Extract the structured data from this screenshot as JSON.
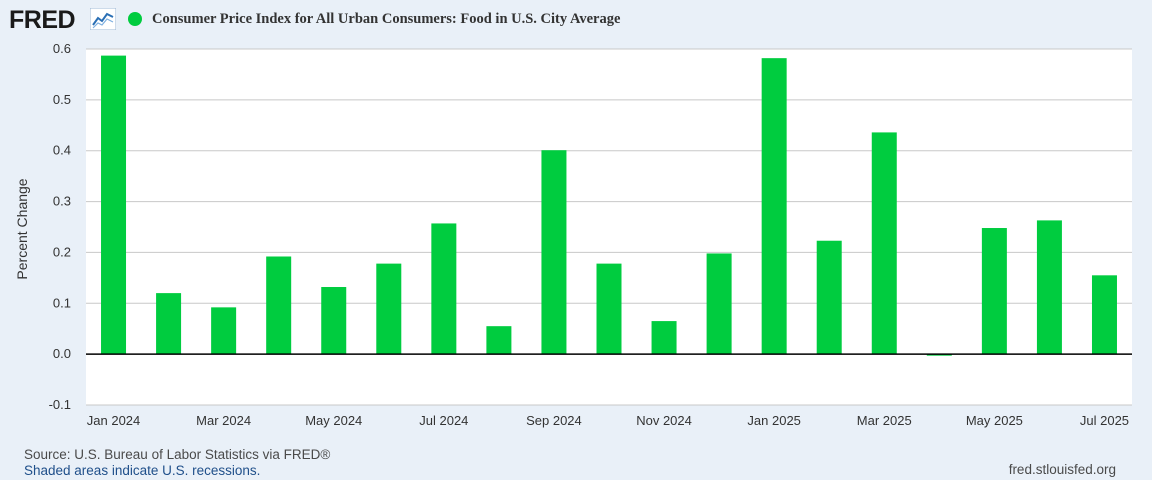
{
  "header": {
    "logo_text": "FRED",
    "logo_icon": "line-chart-icon",
    "series_label": "Consumer Price Index for All Urban Consumers: Food in U.S. City Average"
  },
  "colors": {
    "series": "#00cc3f",
    "grid": "#c8c8c8",
    "zero_line": "#000000",
    "plot_bg": "#ffffff",
    "page_bg": "#e9f0f8"
  },
  "chart_data": {
    "type": "bar",
    "title": "",
    "ylabel": "Percent Change",
    "xlabel": "",
    "ylim": [
      -0.1,
      0.6
    ],
    "yticks": [
      -0.1,
      0.0,
      0.1,
      0.2,
      0.3,
      0.4,
      0.5,
      0.6
    ],
    "ytick_labels": [
      "-0.1",
      "0.0",
      "0.1",
      "0.2",
      "0.3",
      "0.4",
      "0.5",
      "0.6"
    ],
    "grid": true,
    "legend": "top-left",
    "x": [
      "2024-01",
      "2024-02",
      "2024-03",
      "2024-04",
      "2024-05",
      "2024-06",
      "2024-07",
      "2024-08",
      "2024-09",
      "2024-10",
      "2024-11",
      "2024-12",
      "2025-01",
      "2025-02",
      "2025-03",
      "2025-04",
      "2025-05",
      "2025-06",
      "2025-07"
    ],
    "xtick_labels": [
      "Jan 2024",
      "Mar 2024",
      "May 2024",
      "Jul 2024",
      "Sep 2024",
      "Nov 2024",
      "Jan 2025",
      "Mar 2025",
      "May 2025",
      "Jul 2025"
    ],
    "series": [
      {
        "name": "Consumer Price Index for All Urban Consumers: Food in U.S. City Average",
        "values": [
          0.587,
          0.12,
          0.092,
          0.192,
          0.132,
          0.178,
          0.257,
          0.055,
          0.401,
          0.178,
          0.065,
          0.198,
          0.582,
          0.223,
          0.436,
          -0.003,
          0.248,
          0.263,
          0.155
        ]
      }
    ]
  },
  "footer": {
    "source": "Source: U.S. Bureau of Labor Statistics via FRED®",
    "recessions": "Shaded areas indicate U.S. recessions.",
    "site": "fred.stlouisfed.org"
  }
}
